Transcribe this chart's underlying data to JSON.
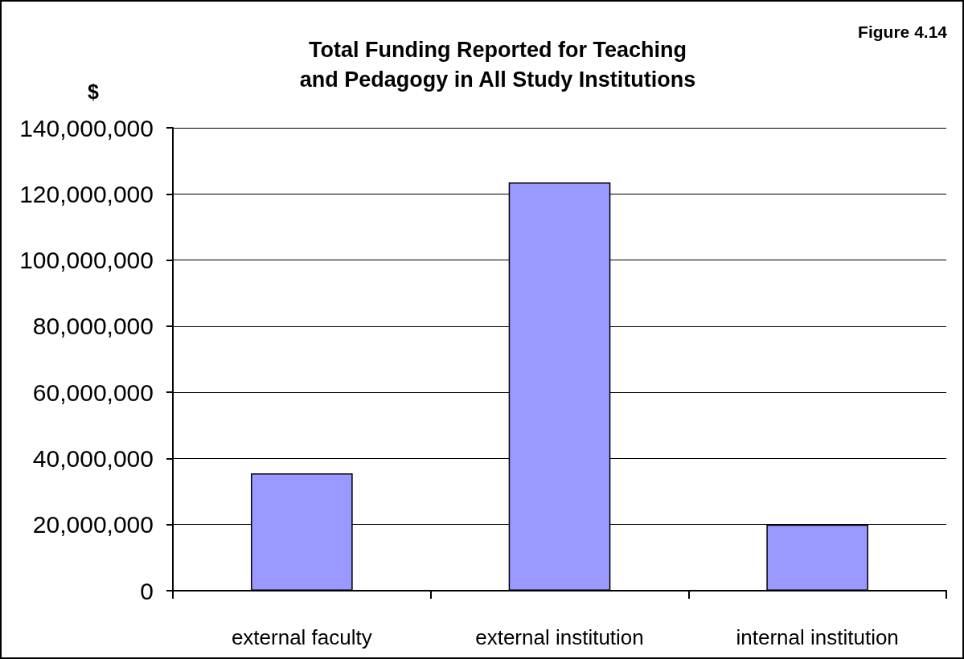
{
  "chart_data": {
    "type": "bar",
    "title": "Total Funding Reported for Teaching\nand Pedagogy in All Study Institutions",
    "ylabel": "$",
    "annotations": [
      "Figure 4.14"
    ],
    "categories": [
      "external faculty",
      "external institution",
      "internal institution"
    ],
    "values": [
      35500000,
      123500000,
      20000000
    ],
    "color": "#9999ff",
    "ylim": [
      0,
      140000000
    ],
    "yticks": [
      0,
      {
        "value": 20000000,
        "label": "20,000,000"
      },
      {
        "value": 40000000,
        "label": "40,000,000"
      },
      {
        "value": 60000000,
        "label": "60,000,000"
      },
      {
        "value": 80000000,
        "label": "80,000,000"
      },
      {
        "value": 100000000,
        "label": "100,000,000"
      },
      {
        "value": 120000000,
        "label": "120,000,000"
      },
      {
        "value": 140000000,
        "label": "140,000,000"
      }
    ],
    "grid": "y"
  }
}
